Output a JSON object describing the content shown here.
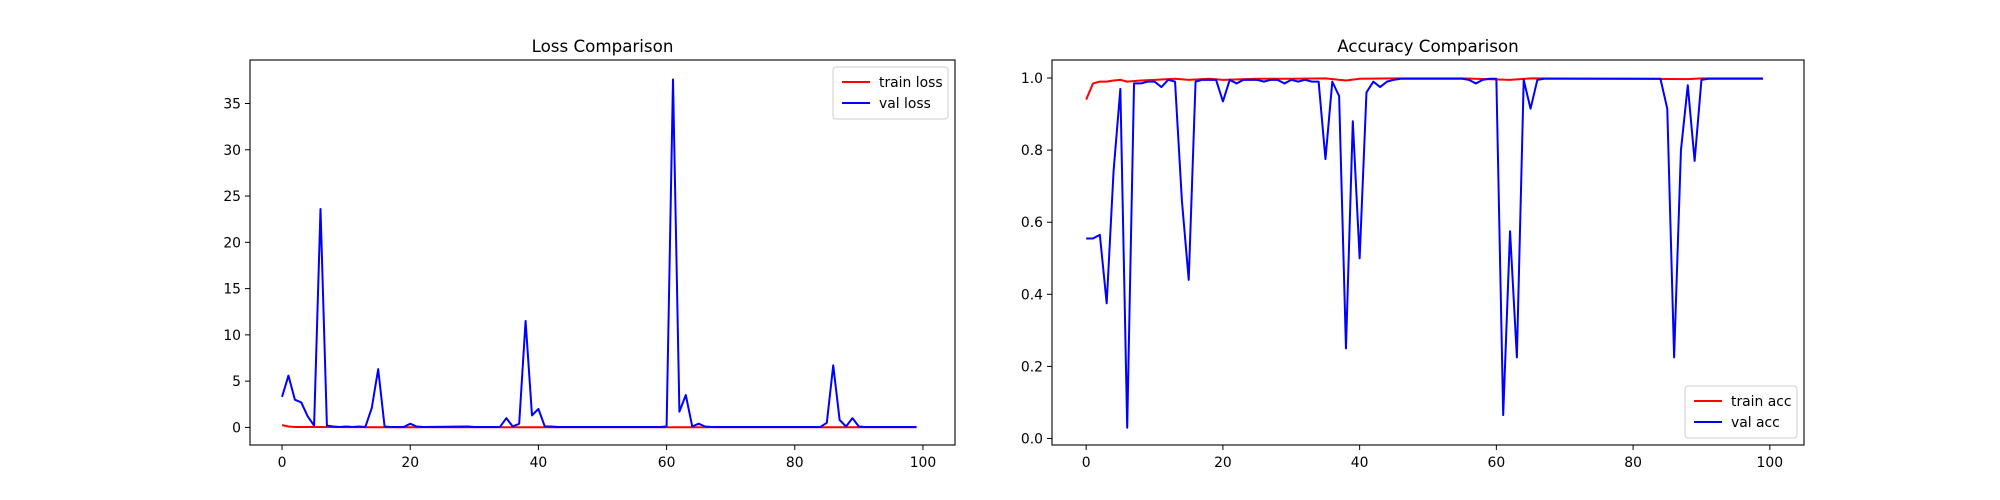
{
  "chart_data": [
    {
      "type": "line",
      "title": "Loss Comparison",
      "xlabel": "",
      "ylabel": "",
      "xlim": [
        -5,
        105
      ],
      "ylim": [
        -1.9,
        39.7
      ],
      "xticks": [
        0,
        20,
        40,
        60,
        80,
        100
      ],
      "yticks": [
        0,
        5,
        10,
        15,
        20,
        25,
        30,
        35
      ],
      "legend_position": "upper right",
      "grid": false,
      "series": [
        {
          "name": "train loss",
          "color": "#ff0000",
          "points": [
            [
              0,
              0.25
            ],
            [
              1,
              0.1
            ],
            [
              2,
              0.05
            ],
            [
              3,
              0.05
            ],
            [
              4,
              0.04
            ],
            [
              5,
              0.04
            ],
            [
              10,
              0.03
            ],
            [
              20,
              0.02
            ],
            [
              40,
              0.02
            ],
            [
              60,
              0.02
            ],
            [
              80,
              0.02
            ],
            [
              99,
              0.02
            ]
          ]
        },
        {
          "name": "val loss",
          "color": "#0000ff",
          "points": [
            [
              0,
              3.3
            ],
            [
              1,
              5.6
            ],
            [
              2,
              3.0
            ],
            [
              3,
              2.7
            ],
            [
              4,
              1.2
            ],
            [
              5,
              0.2
            ],
            [
              6,
              23.6
            ],
            [
              7,
              0.2
            ],
            [
              8,
              0.1
            ],
            [
              9,
              0.05
            ],
            [
              10,
              0.1
            ],
            [
              11,
              0.05
            ],
            [
              12,
              0.1
            ],
            [
              13,
              0.05
            ],
            [
              14,
              2.1
            ],
            [
              15,
              6.3
            ],
            [
              16,
              0.1
            ],
            [
              17,
              0.05
            ],
            [
              18,
              0.05
            ],
            [
              19,
              0.05
            ],
            [
              20,
              0.4
            ],
            [
              21,
              0.1
            ],
            [
              22,
              0.05
            ],
            [
              29,
              0.1
            ],
            [
              30,
              0.05
            ],
            [
              34,
              0.05
            ],
            [
              35,
              1.0
            ],
            [
              36,
              0.1
            ],
            [
              37,
              0.4
            ],
            [
              38,
              11.5
            ],
            [
              39,
              1.3
            ],
            [
              40,
              2.0
            ],
            [
              41,
              0.1
            ],
            [
              42,
              0.1
            ],
            [
              43,
              0.05
            ],
            [
              58,
              0.05
            ],
            [
              59,
              0.05
            ],
            [
              60,
              0.1
            ],
            [
              61,
              37.6
            ],
            [
              62,
              1.7
            ],
            [
              63,
              3.5
            ],
            [
              64,
              0.1
            ],
            [
              65,
              0.4
            ],
            [
              66,
              0.1
            ],
            [
              67,
              0.05
            ],
            [
              84,
              0.05
            ],
            [
              85,
              0.5
            ],
            [
              86,
              6.7
            ],
            [
              87,
              0.8
            ],
            [
              88,
              0.1
            ],
            [
              89,
              1.0
            ],
            [
              90,
              0.1
            ],
            [
              91,
              0.05
            ],
            [
              99,
              0.05
            ]
          ]
        }
      ]
    },
    {
      "type": "line",
      "title": "Accuracy Comparison",
      "xlabel": "",
      "ylabel": "",
      "xlim": [
        -5,
        105
      ],
      "ylim": [
        -0.018,
        1.05
      ],
      "xticks": [
        0,
        20,
        40,
        60,
        80,
        100
      ],
      "yticks": [
        0.0,
        0.2,
        0.4,
        0.6,
        0.8,
        1.0
      ],
      "ytick_labels": [
        "0.0",
        "0.2",
        "0.4",
        "0.6",
        "0.8",
        "1.0"
      ],
      "legend_position": "lower right",
      "grid": false,
      "series": [
        {
          "name": "train acc",
          "color": "#ff0000",
          "points": [
            [
              0,
              0.94
            ],
            [
              1,
              0.985
            ],
            [
              2,
              0.99
            ],
            [
              3,
              0.99
            ],
            [
              4,
              0.993
            ],
            [
              5,
              0.995
            ],
            [
              6,
              0.99
            ],
            [
              8,
              0.993
            ],
            [
              10,
              0.995
            ],
            [
              13,
              0.998
            ],
            [
              15,
              0.995
            ],
            [
              18,
              0.998
            ],
            [
              20,
              0.995
            ],
            [
              25,
              0.998
            ],
            [
              30,
              0.998
            ],
            [
              35,
              0.999
            ],
            [
              38,
              0.993
            ],
            [
              40,
              0.998
            ],
            [
              45,
              0.999
            ],
            [
              55,
              0.999
            ],
            [
              62,
              0.995
            ],
            [
              65,
              0.999
            ],
            [
              80,
              0.998
            ],
            [
              88,
              0.997
            ],
            [
              90,
              0.999
            ],
            [
              99,
              0.999
            ]
          ]
        },
        {
          "name": "val acc",
          "color": "#0000ff",
          "points": [
            [
              0,
              0.555
            ],
            [
              1,
              0.555
            ],
            [
              2,
              0.565
            ],
            [
              3,
              0.375
            ],
            [
              4,
              0.74
            ],
            [
              5,
              0.97
            ],
            [
              6,
              0.03
            ],
            [
              7,
              0.985
            ],
            [
              8,
              0.985
            ],
            [
              9,
              0.99
            ],
            [
              10,
              0.99
            ],
            [
              11,
              0.975
            ],
            [
              12,
              0.995
            ],
            [
              13,
              0.99
            ],
            [
              14,
              0.66
            ],
            [
              15,
              0.44
            ],
            [
              16,
              0.99
            ],
            [
              17,
              0.995
            ],
            [
              18,
              0.995
            ],
            [
              19,
              0.995
            ],
            [
              20,
              0.935
            ],
            [
              21,
              0.995
            ],
            [
              22,
              0.985
            ],
            [
              23,
              0.995
            ],
            [
              24,
              0.995
            ],
            [
              25,
              0.995
            ],
            [
              26,
              0.99
            ],
            [
              27,
              0.995
            ],
            [
              28,
              0.995
            ],
            [
              29,
              0.985
            ],
            [
              30,
              0.995
            ],
            [
              31,
              0.99
            ],
            [
              32,
              0.995
            ],
            [
              33,
              0.99
            ],
            [
              34,
              0.99
            ],
            [
              35,
              0.775
            ],
            [
              36,
              0.99
            ],
            [
              37,
              0.95
            ],
            [
              38,
              0.25
            ],
            [
              39,
              0.88
            ],
            [
              40,
              0.5
            ],
            [
              41,
              0.96
            ],
            [
              42,
              0.99
            ],
            [
              43,
              0.975
            ],
            [
              44,
              0.99
            ],
            [
              45,
              0.995
            ],
            [
              46,
              0.998
            ],
            [
              55,
              0.998
            ],
            [
              56,
              0.995
            ],
            [
              57,
              0.985
            ],
            [
              58,
              0.995
            ],
            [
              59,
              0.998
            ],
            [
              60,
              0.998
            ],
            [
              61,
              0.065
            ],
            [
              62,
              0.575
            ],
            [
              63,
              0.225
            ],
            [
              64,
              0.995
            ],
            [
              65,
              0.915
            ],
            [
              66,
              0.995
            ],
            [
              67,
              0.998
            ],
            [
              84,
              0.998
            ],
            [
              85,
              0.915
            ],
            [
              86,
              0.225
            ],
            [
              87,
              0.8
            ],
            [
              88,
              0.98
            ],
            [
              89,
              0.77
            ],
            [
              90,
              0.995
            ],
            [
              91,
              0.998
            ],
            [
              99,
              0.998
            ]
          ]
        }
      ]
    }
  ]
}
